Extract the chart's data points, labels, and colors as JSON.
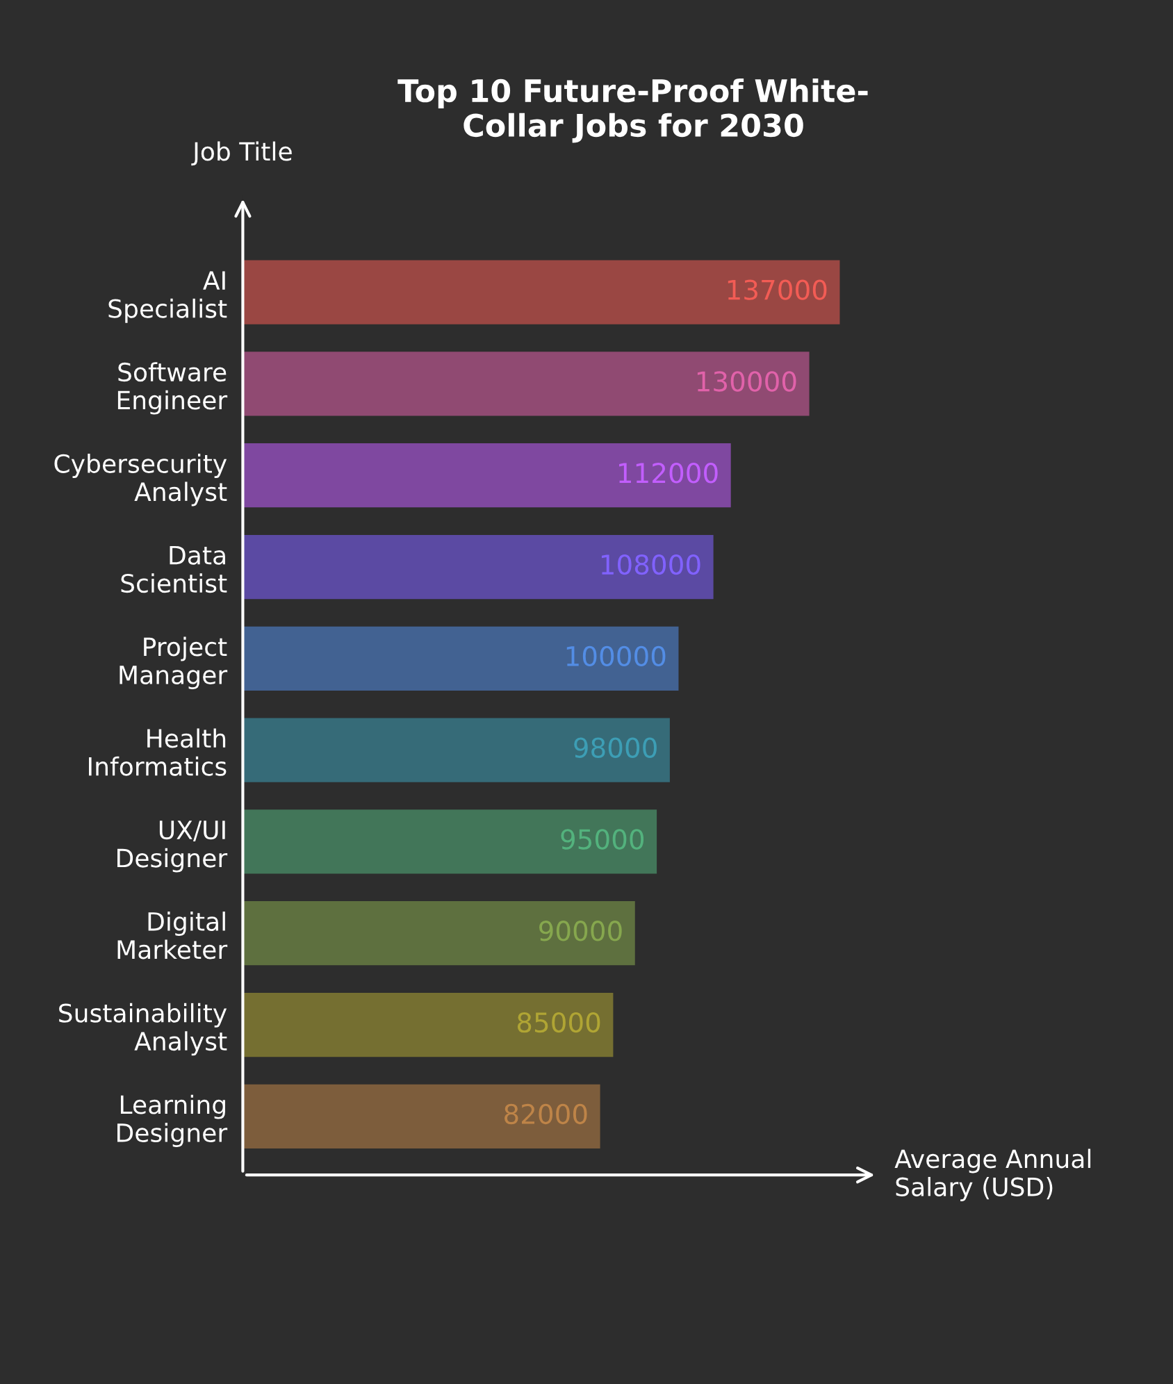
{
  "chart_data": {
    "type": "bar",
    "orientation": "horizontal",
    "title": "Top 10 Future-Proof White-\nCollar Jobs for 2030",
    "xlabel": "Average Annual\nSalary (USD)",
    "ylabel": "Job Title",
    "categories": [
      "AI\nSpecialist",
      "Software\nEngineer",
      "Cybersecurity\nAnalyst",
      "Data\nScientist",
      "Project\nManager",
      "Health\nInformatics",
      "UX/UI\nDesigner",
      "Digital\nMarketer",
      "Sustainability\nAnalyst",
      "Learning\nDesigner"
    ],
    "values": [
      137000,
      130000,
      112000,
      108000,
      100000,
      98000,
      95000,
      90000,
      85000,
      82000
    ],
    "colors": [
      "#9a4743",
      "#904a72",
      "#7f48a0",
      "#5b4aa3",
      "#426292",
      "#366b78",
      "#427659",
      "#5e703f",
      "#756f31",
      "#7d5d3c"
    ],
    "data_labels": true,
    "grid": false,
    "legend": false
  }
}
